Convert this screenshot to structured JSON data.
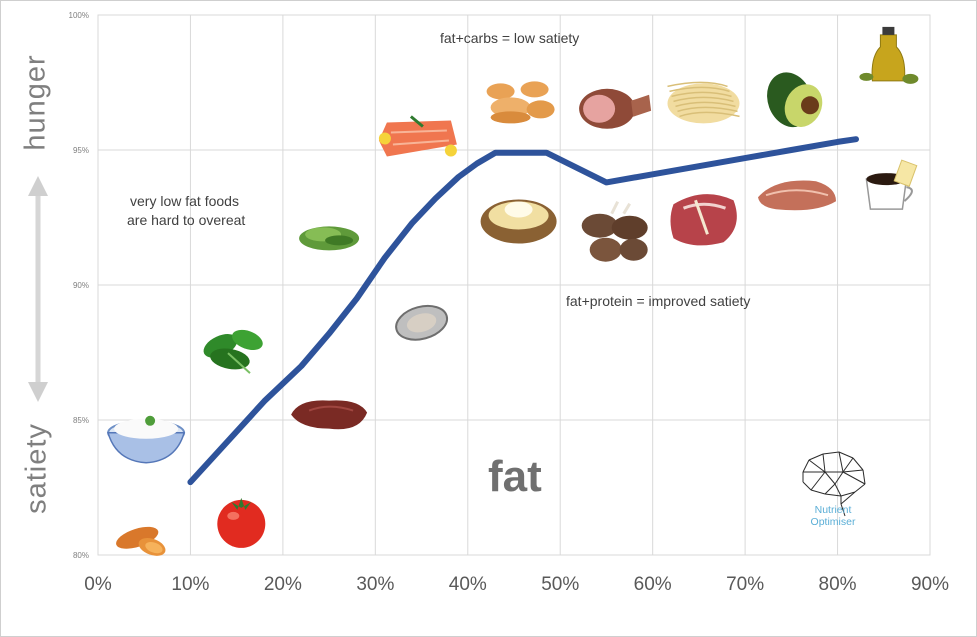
{
  "chart_data": {
    "type": "line",
    "x_axis": {
      "range": [
        0,
        90
      ],
      "ticks": [
        "0%",
        "10%",
        "20%",
        "30%",
        "40%",
        "50%",
        "60%",
        "70%",
        "80%",
        "90%"
      ]
    },
    "y_axis": {
      "range": [
        80,
        100
      ],
      "ticks": [
        "80%",
        "85%",
        "90%",
        "95%",
        "100%"
      ]
    },
    "ylabel_top": "hunger",
    "ylabel_bottom": "satiety",
    "xlabel": "fat",
    "grid": true,
    "series": [
      {
        "color": "#2e539b",
        "x": [
          10,
          14,
          18,
          22,
          25,
          28,
          31,
          34,
          36.5,
          39,
          41,
          43,
          48.5,
          55,
          60,
          65,
          70,
          75,
          80,
          82
        ],
        "y": [
          82.7,
          84.2,
          85.7,
          87.0,
          88.2,
          89.5,
          91.0,
          92.3,
          93.2,
          94.0,
          94.5,
          94.9,
          94.9,
          93.8,
          94.1,
          94.4,
          94.7,
          95.0,
          95.3,
          95.4
        ]
      }
    ],
    "annotations": [
      "fat+carbs = low satiety",
      "very low fat foods",
      "are hard to overeat",
      "fat+protein = improved satiety"
    ]
  },
  "foods": [
    {
      "name": "sweet-potato",
      "x": 5,
      "y": 80.8
    },
    {
      "name": "rice",
      "x": 5.2,
      "y": 84.6
    },
    {
      "name": "tomato",
      "x": 15.5,
      "y": 81.3
    },
    {
      "name": "spinach",
      "x": 14.5,
      "y": 87.7
    },
    {
      "name": "liver",
      "x": 25,
      "y": 85.2
    },
    {
      "name": "sprouts",
      "x": 25,
      "y": 91.8
    },
    {
      "name": "oyster",
      "x": 35,
      "y": 88.6
    },
    {
      "name": "salmon",
      "x": 34.5,
      "y": 95.5
    },
    {
      "name": "crackers",
      "x": 45.5,
      "y": 96.8
    },
    {
      "name": "baked-potato",
      "x": 45.5,
      "y": 92.5
    },
    {
      "name": "ham",
      "x": 55.5,
      "y": 96.6
    },
    {
      "name": "lamb-chops",
      "x": 56,
      "y": 91.9
    },
    {
      "name": "pasta",
      "x": 65.5,
      "y": 96.8
    },
    {
      "name": "steak",
      "x": 65.5,
      "y": 92.4
    },
    {
      "name": "avocado",
      "x": 75.5,
      "y": 97.1
    },
    {
      "name": "pork-chop",
      "x": 75.5,
      "y": 93.4
    },
    {
      "name": "olive-oil",
      "x": 85.5,
      "y": 98.3
    },
    {
      "name": "coffee-butter",
      "x": 85.5,
      "y": 93.7
    }
  ],
  "logo": {
    "line1": "Nutrient",
    "line2": "Optimiser"
  }
}
